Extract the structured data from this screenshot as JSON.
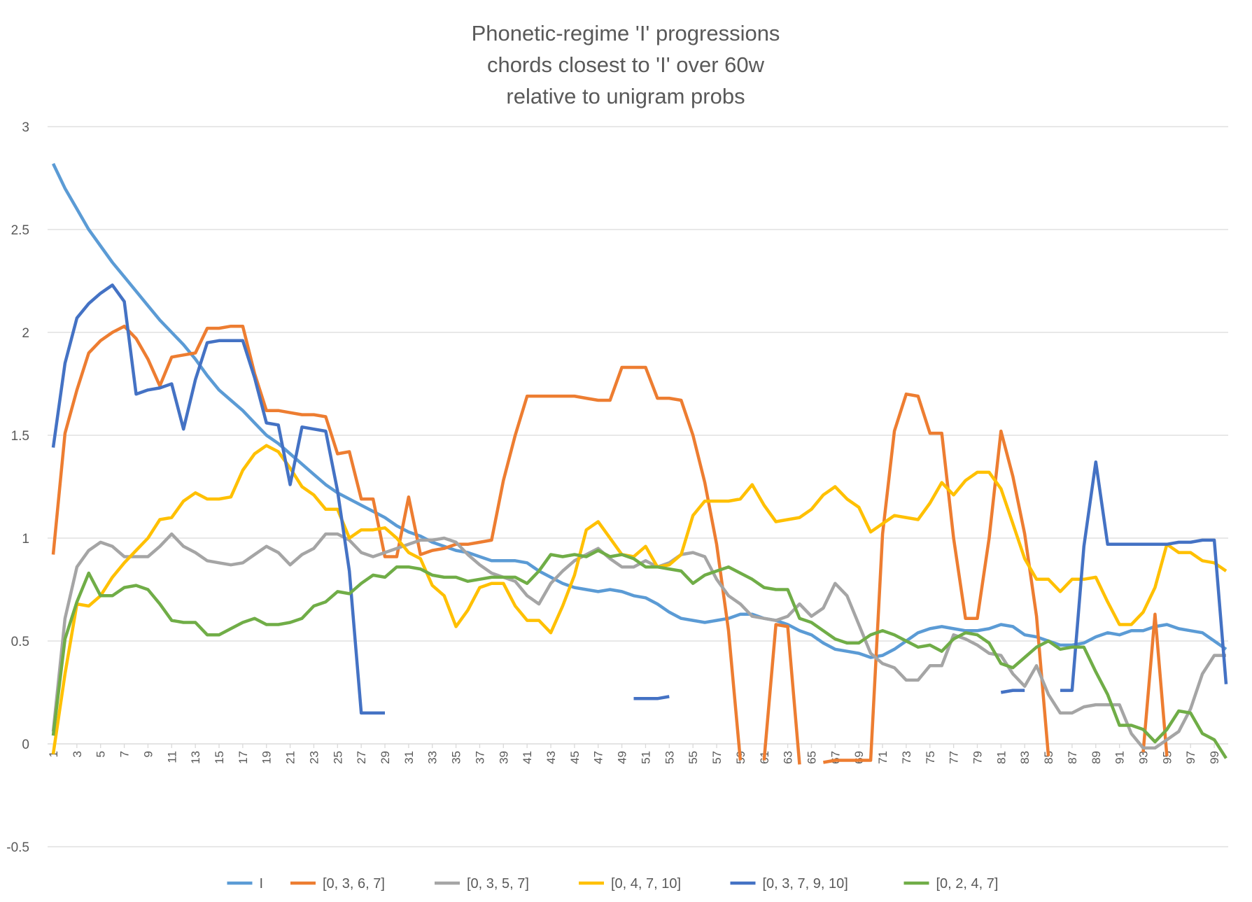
{
  "chart_data": {
    "type": "line",
    "title_lines": [
      "Phonetic-regime 'I' progressions",
      "chords closest to 'I' over 60w",
      "relative to unigram probs"
    ],
    "xlabel": "",
    "ylabel": "",
    "ylim": [
      -0.5,
      3
    ],
    "yticks": [
      -0.5,
      0,
      0.5,
      1,
      1.5,
      2,
      2.5,
      3
    ],
    "ytick_labels": [
      "-0.5",
      "0",
      "0.5",
      "1",
      "1.5",
      "2",
      "2.5",
      "3"
    ],
    "x": [
      1,
      2,
      3,
      4,
      5,
      6,
      7,
      8,
      9,
      10,
      11,
      12,
      13,
      14,
      15,
      16,
      17,
      18,
      19,
      20,
      21,
      22,
      23,
      24,
      25,
      26,
      27,
      28,
      29,
      30,
      31,
      32,
      33,
      34,
      35,
      36,
      37,
      38,
      39,
      40,
      41,
      42,
      43,
      44,
      45,
      46,
      47,
      48,
      49,
      50,
      51,
      52,
      53,
      54,
      55,
      56,
      57,
      58,
      59,
      60,
      61,
      62,
      63,
      64,
      65,
      66,
      67,
      68,
      69,
      70,
      71,
      72,
      73,
      74,
      75,
      76,
      77,
      78,
      79,
      80,
      81,
      82,
      83,
      84,
      85,
      86,
      87,
      88,
      89,
      90,
      91,
      92,
      93,
      94,
      95,
      96,
      97,
      98,
      99,
      100
    ],
    "xtick_labels": [
      "1",
      "3",
      "5",
      "7",
      "9",
      "11",
      "13",
      "15",
      "17",
      "19",
      "21",
      "23",
      "25",
      "27",
      "29",
      "31",
      "33",
      "35",
      "37",
      "39",
      "41",
      "43",
      "45",
      "47",
      "49",
      "51",
      "53",
      "55",
      "57",
      "59",
      "61",
      "63",
      "65",
      "67",
      "69",
      "71",
      "73",
      "75",
      "77",
      "79",
      "81",
      "83",
      "85",
      "87",
      "89",
      "91",
      "93",
      "95",
      "97",
      "99"
    ],
    "grid": true,
    "legend_position": "bottom",
    "series": [
      {
        "name": "I",
        "color": "#5B9BD5",
        "values": [
          2.82,
          2.7,
          2.6,
          2.5,
          2.42,
          2.34,
          2.27,
          2.2,
          2.13,
          2.06,
          2.0,
          1.94,
          1.87,
          1.79,
          1.72,
          1.67,
          1.62,
          1.56,
          1.5,
          1.46,
          1.41,
          1.36,
          1.31,
          1.26,
          1.22,
          1.19,
          1.16,
          1.13,
          1.1,
          1.06,
          1.03,
          1.01,
          0.98,
          0.96,
          0.94,
          0.93,
          0.91,
          0.89,
          0.89,
          0.89,
          0.88,
          0.84,
          0.81,
          0.78,
          0.76,
          0.75,
          0.74,
          0.75,
          0.74,
          0.72,
          0.71,
          0.68,
          0.64,
          0.61,
          0.6,
          0.59,
          0.6,
          0.61,
          0.63,
          0.63,
          0.61,
          0.6,
          0.58,
          0.55,
          0.53,
          0.49,
          0.46,
          0.45,
          0.44,
          0.42,
          0.43,
          0.46,
          0.5,
          0.54,
          0.56,
          0.57,
          0.56,
          0.55,
          0.55,
          0.56,
          0.58,
          0.57,
          0.53,
          0.52,
          0.5,
          0.48,
          0.48,
          0.49,
          0.52,
          0.54,
          0.53,
          0.55,
          0.55,
          0.57,
          0.58,
          0.56,
          0.55,
          0.54,
          0.5,
          0.46
        ]
      },
      {
        "name": "[0, 3, 6, 7]",
        "color": "#ED7D31",
        "values": [
          0.92,
          1.51,
          1.72,
          1.9,
          1.96,
          2.0,
          2.03,
          1.97,
          1.87,
          1.74,
          1.88,
          1.89,
          1.9,
          2.02,
          2.02,
          2.03,
          2.03,
          1.8,
          1.62,
          1.62,
          1.61,
          1.6,
          1.6,
          1.59,
          1.41,
          1.42,
          1.19,
          1.19,
          0.91,
          0.91,
          1.2,
          0.92,
          0.94,
          0.95,
          0.97,
          0.97,
          0.98,
          0.99,
          1.28,
          1.5,
          1.69,
          1.69,
          1.69,
          1.69,
          1.69,
          1.68,
          1.67,
          1.67,
          1.83,
          1.83,
          1.83,
          1.68,
          1.68,
          1.67,
          1.5,
          1.27,
          0.97,
          0.55,
          -0.08,
          null,
          -0.08,
          0.58,
          0.57,
          -0.1,
          null,
          -0.09,
          -0.08,
          -0.08,
          -0.08,
          -0.08,
          1.02,
          1.52,
          1.7,
          1.69,
          1.51,
          1.51,
          1.0,
          0.61,
          0.61,
          1.0,
          1.52,
          1.3,
          1.02,
          0.62,
          -0.06,
          null,
          null,
          null,
          null,
          null,
          null,
          null,
          -0.04,
          0.63,
          -0.06,
          null,
          null,
          null,
          null,
          null
        ]
      },
      {
        "name": "[0, 3, 5, 7]",
        "color": "#A5A5A5",
        "values": [
          0.06,
          0.61,
          0.86,
          0.94,
          0.98,
          0.96,
          0.91,
          0.91,
          0.91,
          0.96,
          1.02,
          0.96,
          0.93,
          0.89,
          0.88,
          0.87,
          0.88,
          0.92,
          0.96,
          0.93,
          0.87,
          0.92,
          0.95,
          1.02,
          1.02,
          0.99,
          0.93,
          0.91,
          0.93,
          0.95,
          0.97,
          0.99,
          0.99,
          1.0,
          0.98,
          0.92,
          0.87,
          0.83,
          0.81,
          0.79,
          0.72,
          0.68,
          0.78,
          0.84,
          0.89,
          0.92,
          0.95,
          0.9,
          0.86,
          0.86,
          0.89,
          0.86,
          0.88,
          0.92,
          0.93,
          0.91,
          0.8,
          0.72,
          0.68,
          0.62,
          0.61,
          0.6,
          0.62,
          0.68,
          0.62,
          0.66,
          0.78,
          0.72,
          0.58,
          0.44,
          0.39,
          0.37,
          0.31,
          0.31,
          0.38,
          0.38,
          0.53,
          0.51,
          0.48,
          0.44,
          0.43,
          0.34,
          0.28,
          0.38,
          0.24,
          0.15,
          0.15,
          0.18,
          0.19,
          0.19,
          0.19,
          0.05,
          -0.02,
          -0.02,
          0.02,
          0.06,
          0.17,
          0.34,
          0.43,
          0.43
        ]
      },
      {
        "name": "[0, 4, 7, 10]",
        "color": "#FFC000",
        "values": [
          -0.05,
          0.34,
          0.68,
          0.67,
          0.72,
          0.81,
          0.88,
          0.94,
          1.0,
          1.09,
          1.1,
          1.18,
          1.22,
          1.19,
          1.19,
          1.2,
          1.33,
          1.41,
          1.45,
          1.42,
          1.34,
          1.25,
          1.21,
          1.14,
          1.14,
          1.0,
          1.04,
          1.04,
          1.05,
          1.0,
          0.93,
          0.9,
          0.77,
          0.72,
          0.57,
          0.65,
          0.76,
          0.78,
          0.78,
          0.67,
          0.6,
          0.6,
          0.54,
          0.67,
          0.82,
          1.04,
          1.08,
          1.0,
          0.92,
          0.91,
          0.96,
          0.86,
          0.87,
          0.92,
          1.11,
          1.18,
          1.18,
          1.18,
          1.19,
          1.26,
          1.16,
          1.08,
          1.09,
          1.1,
          1.14,
          1.21,
          1.25,
          1.19,
          1.15,
          1.03,
          1.07,
          1.11,
          1.1,
          1.09,
          1.17,
          1.27,
          1.21,
          1.28,
          1.32,
          1.32,
          1.24,
          1.07,
          0.9,
          0.8,
          0.8,
          0.74,
          0.8,
          0.8,
          0.81,
          0.69,
          0.58,
          0.58,
          0.64,
          0.76,
          0.97,
          0.93,
          0.93,
          0.89,
          0.88,
          0.84
        ]
      },
      {
        "name": "[0, 3, 7, 9, 10]",
        "color": "#4472C4",
        "values": [
          1.44,
          1.85,
          2.07,
          2.14,
          2.19,
          2.23,
          2.15,
          1.7,
          1.72,
          1.73,
          1.75,
          1.53,
          1.77,
          1.95,
          1.96,
          1.96,
          1.96,
          1.78,
          1.56,
          1.55,
          1.26,
          1.54,
          1.53,
          1.52,
          1.23,
          0.84,
          0.15,
          0.15,
          0.15,
          null,
          null,
          null,
          null,
          null,
          null,
          null,
          null,
          null,
          null,
          null,
          null,
          null,
          null,
          null,
          null,
          null,
          null,
          null,
          null,
          0.22,
          0.22,
          0.22,
          0.23,
          null,
          null,
          null,
          null,
          null,
          null,
          null,
          null,
          null,
          null,
          null,
          null,
          null,
          null,
          null,
          null,
          null,
          null,
          null,
          null,
          null,
          null,
          null,
          null,
          null,
          null,
          null,
          0.25,
          0.26,
          0.26,
          null,
          null,
          0.26,
          0.26,
          0.96,
          1.37,
          0.97,
          0.97,
          0.97,
          0.97,
          0.97,
          0.97,
          0.98,
          0.98,
          0.99,
          0.99,
          0.29
        ]
      },
      {
        "name": "[0, 2, 4, 7]",
        "color": "#70AD47",
        "values": [
          0.04,
          0.51,
          0.69,
          0.83,
          0.72,
          0.72,
          0.76,
          0.77,
          0.75,
          0.68,
          0.6,
          0.59,
          0.59,
          0.53,
          0.53,
          0.56,
          0.59,
          0.61,
          0.58,
          0.58,
          0.59,
          0.61,
          0.67,
          0.69,
          0.74,
          0.73,
          0.78,
          0.82,
          0.81,
          0.86,
          0.86,
          0.85,
          0.82,
          0.81,
          0.81,
          0.79,
          0.8,
          0.81,
          0.81,
          0.81,
          0.78,
          0.84,
          0.92,
          0.91,
          0.92,
          0.91,
          0.94,
          0.91,
          0.92,
          0.9,
          0.86,
          0.86,
          0.85,
          0.84,
          0.78,
          0.82,
          0.84,
          0.86,
          0.83,
          0.8,
          0.76,
          0.75,
          0.75,
          0.61,
          0.59,
          0.55,
          0.51,
          0.49,
          0.49,
          0.53,
          0.55,
          0.53,
          0.5,
          0.47,
          0.48,
          0.45,
          0.51,
          0.54,
          0.53,
          0.49,
          0.39,
          0.37,
          0.42,
          0.47,
          0.5,
          0.46,
          0.47,
          0.47,
          0.35,
          0.24,
          0.09,
          0.09,
          0.07,
          0.01,
          0.07,
          0.16,
          0.15,
          0.05,
          0.02,
          -0.07
        ]
      }
    ]
  }
}
